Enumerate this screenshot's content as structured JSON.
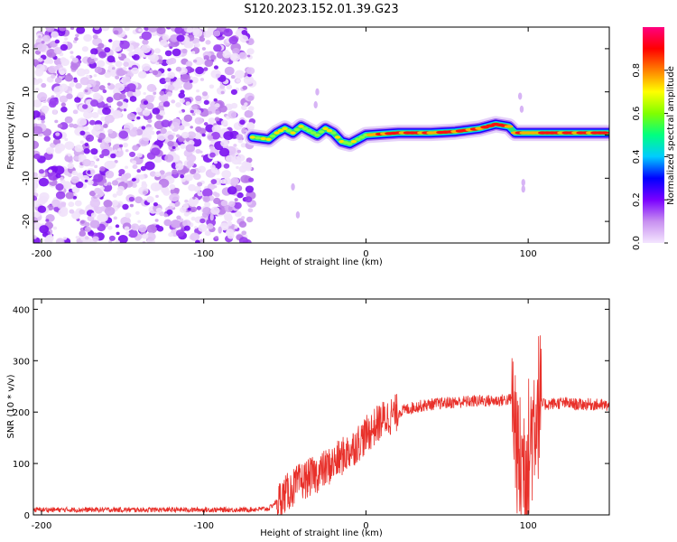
{
  "figure": {
    "title": "S120.2023.152.01.39.G23"
  },
  "chart_data": [
    {
      "type": "heatmap",
      "xlabel": "Height of straight line (km)",
      "ylabel": "Frequency (Hz)",
      "xlim": [
        -205,
        150
      ],
      "ylim": [
        -25,
        25
      ],
      "x_ticks": [
        -200,
        -100,
        0,
        100
      ],
      "y_ticks": [
        -20,
        -10,
        0,
        10,
        20
      ],
      "noise_region_x": [
        -205,
        -70
      ],
      "signal_track": [
        {
          "x": -70,
          "y": -0.5
        },
        {
          "x": -60,
          "y": -1
        },
        {
          "x": -55,
          "y": 0.5
        },
        {
          "x": -50,
          "y": 1.5
        },
        {
          "x": -45,
          "y": 0.5
        },
        {
          "x": -40,
          "y": 2
        },
        {
          "x": -35,
          "y": 1
        },
        {
          "x": -30,
          "y": 0
        },
        {
          "x": -25,
          "y": 1.5
        },
        {
          "x": -20,
          "y": 0.5
        },
        {
          "x": -15,
          "y": -1.5
        },
        {
          "x": -10,
          "y": -2
        },
        {
          "x": -5,
          "y": -1
        },
        {
          "x": 0,
          "y": 0
        },
        {
          "x": 20,
          "y": 0.5
        },
        {
          "x": 40,
          "y": 0.5
        },
        {
          "x": 55,
          "y": 0.8
        },
        {
          "x": 70,
          "y": 1.5
        },
        {
          "x": 80,
          "y": 2.5
        },
        {
          "x": 88,
          "y": 2
        },
        {
          "x": 92,
          "y": 0.5
        },
        {
          "x": 100,
          "y": 0.5
        },
        {
          "x": 150,
          "y": 0.5
        }
      ],
      "colorbar": {
        "label": "Normalized spectral amplitude",
        "ticks": [
          "0.0",
          "0.2",
          "0.4",
          "0.6",
          "0.8"
        ],
        "tick_values": [
          0,
          0.2,
          0.4,
          0.6,
          0.8
        ],
        "range": [
          0,
          1
        ],
        "colors": [
          "#f4e6ff",
          "#c890f0",
          "#7a00ff",
          "#0000ff",
          "#00ccff",
          "#00ff80",
          "#80ff00",
          "#ffff00",
          "#ff8000",
          "#ff0000",
          "#ff0080"
        ]
      }
    },
    {
      "type": "line",
      "xlabel": "Height of straight line (km)",
      "ylabel": "SNR (10 * v/v)",
      "xlim": [
        -205,
        150
      ],
      "ylim": [
        0,
        420
      ],
      "x_ticks": [
        -200,
        -100,
        0,
        100
      ],
      "y_ticks": [
        0,
        100,
        200,
        300,
        400
      ],
      "color": "#e8302a",
      "series": [
        {
          "x": [
            -205,
            -150,
            -100,
            -75,
            -60,
            -50,
            -40,
            -30,
            -20,
            -10,
            0,
            10,
            20,
            30,
            40,
            50,
            60,
            70,
            80,
            90,
            95,
            100,
            105,
            110,
            120,
            130,
            140,
            150
          ],
          "values": [
            10,
            10,
            10,
            10,
            12,
            40,
            65,
            80,
            100,
            125,
            155,
            185,
            200,
            210,
            215,
            218,
            220,
            222,
            222,
            225,
            90,
            120,
            215,
            215,
            218,
            215,
            215,
            212
          ]
        }
      ]
    }
  ]
}
